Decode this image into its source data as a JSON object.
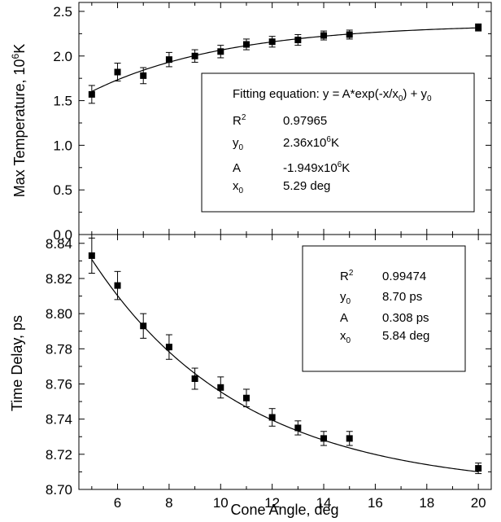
{
  "chart_data": [
    {
      "type": "scatter",
      "ylabel": "Max Temperature, 10",
      "ylabel_sup": "6",
      "ylabel_tail": "K",
      "ylim": [
        0.0,
        2.6
      ],
      "xlim": [
        4.5,
        20.5
      ],
      "yticks": [
        "0.0",
        "0.5",
        "1.0",
        "1.5",
        "2.0",
        "2.5"
      ],
      "ytick_values": [
        0.0,
        0.5,
        1.0,
        1.5,
        2.0,
        2.5
      ],
      "series": [
        {
          "x": [
            5,
            6,
            7,
            8,
            9,
            10,
            11,
            12,
            13,
            14,
            15,
            20
          ],
          "y": [
            1.57,
            1.82,
            1.78,
            1.96,
            2.0,
            2.05,
            2.13,
            2.16,
            2.18,
            2.23,
            2.24,
            2.32
          ],
          "err": [
            0.1,
            0.1,
            0.09,
            0.08,
            0.07,
            0.07,
            0.06,
            0.06,
            0.06,
            0.05,
            0.05,
            0.04
          ]
        }
      ],
      "fit": {
        "A": -1.949,
        "y0": 2.36,
        "x0": 5.29
      },
      "legend": {
        "title_prefix": "Fitting equation: y = A*exp(-x/x",
        "title_sub1": "0",
        "title_mid": ") + y",
        "title_sub2": "0",
        "rows": [
          {
            "label": "R",
            "sup": "2",
            "sub": "",
            "value": "0.97965",
            "value_sup": "",
            "value_tail": ""
          },
          {
            "label": "y",
            "sup": "",
            "sub": "0",
            "value": "2.36x10",
            "value_sup": "6",
            "value_tail": "K"
          },
          {
            "label": "A",
            "sup": "",
            "sub": "",
            "value": "-1.949x10",
            "value_sup": "6",
            "value_tail": "K"
          },
          {
            "label": "x",
            "sup": "",
            "sub": "0",
            "value": "5.29 deg",
            "value_sup": "",
            "value_tail": ""
          }
        ]
      }
    },
    {
      "type": "scatter",
      "ylabel": "Time Delay, ps",
      "xlabel": "Cone Angle, deg",
      "ylim": [
        8.7,
        8.845
      ],
      "xlim": [
        4.5,
        20.5
      ],
      "xticks": [
        "6",
        "8",
        "10",
        "12",
        "14",
        "16",
        "18",
        "20"
      ],
      "xtick_values": [
        6,
        8,
        10,
        12,
        14,
        16,
        18,
        20
      ],
      "yticks": [
        "8.70",
        "8.72",
        "8.74",
        "8.76",
        "8.78",
        "8.80",
        "8.82",
        "8.84"
      ],
      "ytick_values": [
        8.7,
        8.72,
        8.74,
        8.76,
        8.78,
        8.8,
        8.82,
        8.84
      ],
      "series": [
        {
          "x": [
            5,
            6,
            7,
            8,
            9,
            10,
            11,
            12,
            13,
            14,
            15,
            20
          ],
          "y": [
            8.833,
            8.816,
            8.793,
            8.781,
            8.763,
            8.758,
            8.752,
            8.741,
            8.735,
            8.729,
            8.729,
            8.712
          ],
          "err": [
            0.01,
            0.008,
            0.007,
            0.007,
            0.006,
            0.006,
            0.005,
            0.005,
            0.004,
            0.004,
            0.004,
            0.003
          ]
        }
      ],
      "fit": {
        "A": 0.308,
        "y0": 8.7,
        "x0": 5.84
      },
      "legend": {
        "rows": [
          {
            "label": "R",
            "sup": "2",
            "sub": "",
            "value": "0.99474"
          },
          {
            "label": "y",
            "sup": "",
            "sub": "0",
            "value": "8.70 ps"
          },
          {
            "label": "A",
            "sup": "",
            "sub": "",
            "value": "0.308 ps"
          },
          {
            "label": "x",
            "sup": "",
            "sub": "0",
            "value": "5.84 deg"
          }
        ]
      }
    }
  ]
}
